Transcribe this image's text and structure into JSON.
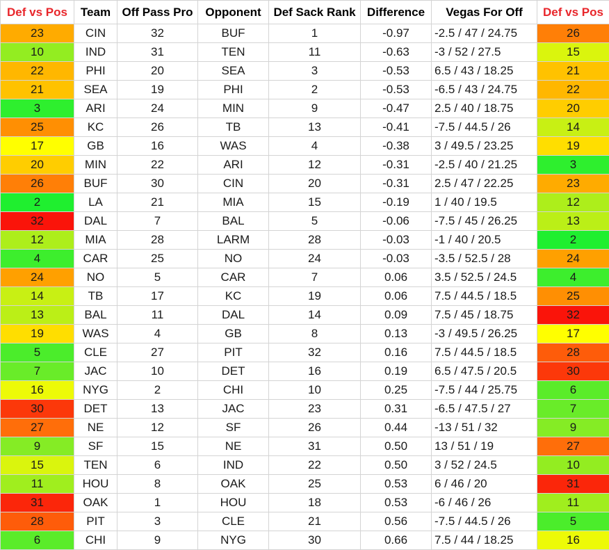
{
  "headers": [
    "Def vs Pos",
    "Team",
    "Off Pass Pro",
    "Opponent",
    "Def Sack Rank",
    "Difference",
    "Vegas For Off",
    "Def vs Pos"
  ],
  "header_colors": {
    "red": "#e8262b",
    "black": "#000000"
  },
  "rows": [
    [
      "23",
      "CIN",
      "32",
      "BUF",
      "1",
      "-0.97",
      "-2.5 / 47 / 24.75",
      "26"
    ],
    [
      "10",
      "IND",
      "31",
      "TEN",
      "11",
      "-0.63",
      "-3 / 52 / 27.5",
      "15"
    ],
    [
      "22",
      "PHI",
      "20",
      "SEA",
      "3",
      "-0.53",
      "6.5 / 43 / 18.25",
      "21"
    ],
    [
      "21",
      "SEA",
      "19",
      "PHI",
      "2",
      "-0.53",
      "-6.5 / 43 / 24.75",
      "22"
    ],
    [
      "3",
      "ARI",
      "24",
      "MIN",
      "9",
      "-0.47",
      "2.5 / 40 / 18.75",
      "20"
    ],
    [
      "25",
      "KC",
      "26",
      "TB",
      "13",
      "-0.41",
      "-7.5 / 44.5 / 26",
      "14"
    ],
    [
      "17",
      "GB",
      "16",
      "WAS",
      "4",
      "-0.38",
      "3 / 49.5 / 23.25",
      "19"
    ],
    [
      "20",
      "MIN",
      "22",
      "ARI",
      "12",
      "-0.31",
      "-2.5 / 40 / 21.25",
      "3"
    ],
    [
      "26",
      "BUF",
      "30",
      "CIN",
      "20",
      "-0.31",
      "2.5 / 47 / 22.25",
      "23"
    ],
    [
      "2",
      "LA",
      "21",
      "MIA",
      "15",
      "-0.19",
      "1 / 40 / 19.5",
      "12"
    ],
    [
      "32",
      "DAL",
      "7",
      "BAL",
      "5",
      "-0.06",
      "-7.5 / 45 / 26.25",
      "13"
    ],
    [
      "12",
      "MIA",
      "28",
      "LARM",
      "28",
      "-0.03",
      "-1 / 40 / 20.5",
      "2"
    ],
    [
      "4",
      "CAR",
      "25",
      "NO",
      "24",
      "-0.03",
      "-3.5 / 52.5 / 28",
      "24"
    ],
    [
      "24",
      "NO",
      "5",
      "CAR",
      "7",
      "0.06",
      "3.5 / 52.5 / 24.5",
      "4"
    ],
    [
      "14",
      "TB",
      "17",
      "KC",
      "19",
      "0.06",
      "7.5 / 44.5 / 18.5",
      "25"
    ],
    [
      "13",
      "BAL",
      "11",
      "DAL",
      "14",
      "0.09",
      "7.5 / 45 / 18.75",
      "32"
    ],
    [
      "19",
      "WAS",
      "4",
      "GB",
      "8",
      "0.13",
      "-3 / 49.5 / 26.25",
      "17"
    ],
    [
      "5",
      "CLE",
      "27",
      "PIT",
      "32",
      "0.16",
      "7.5 / 44.5 / 18.5",
      "28"
    ],
    [
      "7",
      "JAC",
      "10",
      "DET",
      "16",
      "0.19",
      "6.5 / 47.5 / 20.5",
      "30"
    ],
    [
      "16",
      "NYG",
      "2",
      "CHI",
      "10",
      "0.25",
      "-7.5 / 44 / 25.75",
      "6"
    ],
    [
      "30",
      "DET",
      "13",
      "JAC",
      "23",
      "0.31",
      "-6.5 / 47.5 / 27",
      "7"
    ],
    [
      "27",
      "NE",
      "12",
      "SF",
      "26",
      "0.44",
      "-13 / 51 / 32",
      "9"
    ],
    [
      "9",
      "SF",
      "15",
      "NE",
      "31",
      "0.50",
      "13 / 51 / 19",
      "27"
    ],
    [
      "15",
      "TEN",
      "6",
      "IND",
      "22",
      "0.50",
      "3 / 52 / 24.5",
      "10"
    ],
    [
      "11",
      "HOU",
      "8",
      "OAK",
      "25",
      "0.53",
      "6 / 46 / 20",
      "31"
    ],
    [
      "31",
      "OAK",
      "1",
      "HOU",
      "18",
      "0.53",
      "-6 / 46 / 26",
      "11"
    ],
    [
      "28",
      "PIT",
      "3",
      "CLE",
      "21",
      "0.56",
      "-7.5 / 44.5 / 26",
      "5"
    ],
    [
      "6",
      "CHI",
      "9",
      "NYG",
      "30",
      "0.66",
      "7.5 / 44 / 18.25",
      "16"
    ]
  ]
}
